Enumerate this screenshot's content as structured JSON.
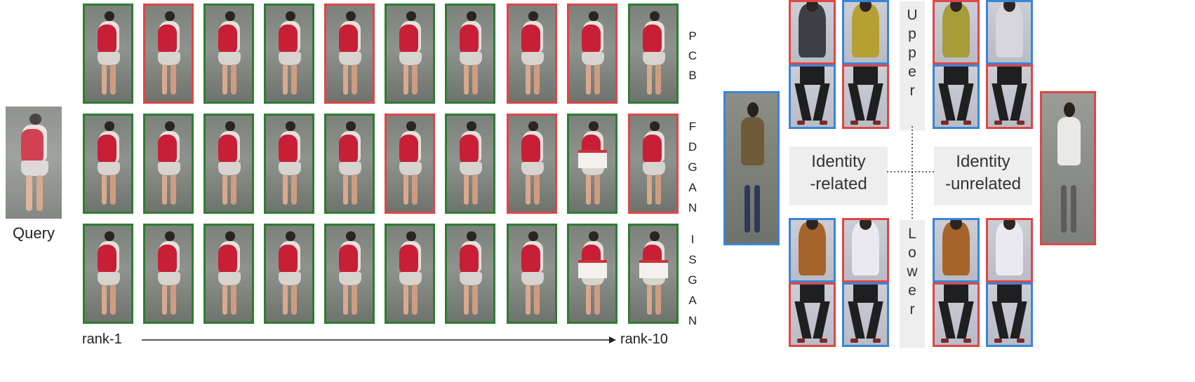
{
  "ranking": {
    "query_label": "Query",
    "rank_start": "rank-1",
    "rank_end": "rank-10",
    "rows": [
      {
        "name": "pcb",
        "letters": [
          "P",
          "C",
          "B"
        ],
        "match": [
          "correct",
          "wrong",
          "correct",
          "correct",
          "wrong",
          "correct",
          "correct",
          "wrong",
          "wrong",
          "correct"
        ]
      },
      {
        "name": "fdgan",
        "letters": [
          "F",
          "D",
          "G",
          "A",
          "N"
        ],
        "match": [
          "correct",
          "correct",
          "correct",
          "correct",
          "correct",
          "wrong",
          "correct",
          "wrong",
          "correct",
          "wrong"
        ]
      },
      {
        "name": "isgan",
        "letters": [
          "I",
          "S",
          "G",
          "A",
          "N"
        ],
        "match": [
          "correct",
          "correct",
          "correct",
          "correct",
          "correct",
          "correct",
          "correct",
          "correct",
          "correct",
          "correct"
        ]
      }
    ]
  },
  "swap_diagram": {
    "upper_letters": [
      "U",
      "p",
      "p",
      "e",
      "r"
    ],
    "lower_letters": [
      "L",
      "o",
      "w",
      "e",
      "r"
    ],
    "identity_related": [
      "Identity",
      "-related"
    ],
    "identity_unrelated": [
      "Identity",
      "-unrelated"
    ]
  },
  "colors": {
    "correct": "#2e7d32",
    "wrong": "#e04646",
    "blue": "#3a84d8"
  }
}
